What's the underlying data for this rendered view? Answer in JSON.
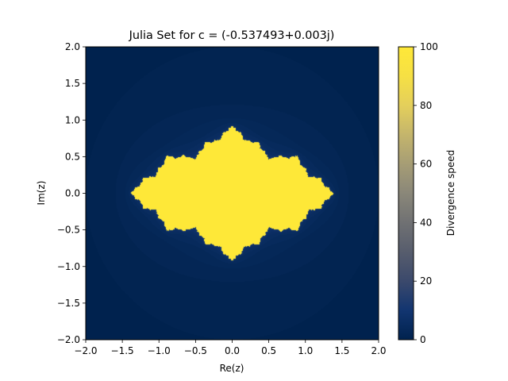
{
  "chart_data": {
    "type": "heatmap",
    "title": "Julia Set for c = (-0.537493+0.003j)",
    "xlabel": "Re(z)",
    "ylabel": "Im(z)",
    "xlim": [
      -2.0,
      2.0
    ],
    "ylim": [
      -2.0,
      2.0
    ],
    "xticks": [
      "−2.0",
      "−1.5",
      "−1.0",
      "−0.5",
      "0.0",
      "0.5",
      "1.0",
      "1.5",
      "2.0"
    ],
    "yticks": [
      "−2.0",
      "−1.5",
      "−1.0",
      "−0.5",
      "0.0",
      "0.5",
      "1.0",
      "1.5",
      "2.0"
    ],
    "c": {
      "re": -0.537493,
      "im": 0.003
    },
    "max_iter": 100,
    "colormap": "cividis",
    "grid": false,
    "colorbar": {
      "label": "Divergence speed",
      "range": [
        0,
        100
      ],
      "ticks": [
        "0",
        "20",
        "40",
        "60",
        "80",
        "100"
      ],
      "low_color": "#00224e",
      "high_color": "#fee838"
    }
  }
}
